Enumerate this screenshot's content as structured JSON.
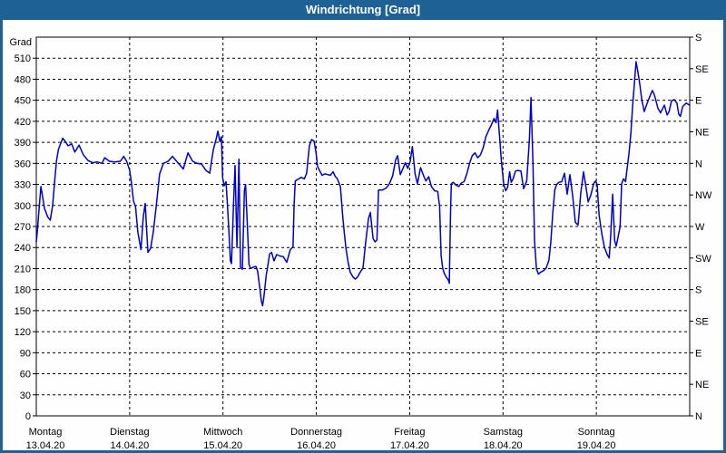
{
  "window": {
    "title": "Windrichtung [Grad]"
  },
  "colors": {
    "frame": "#1E6295",
    "title_bg": "#1E6295",
    "title_text": "#FFFFFF",
    "line": "#0000C8",
    "grid": "#000000",
    "axis": "#000000",
    "text": "#000000",
    "background": "#FDFEFD"
  },
  "chart_data": {
    "type": "line",
    "title": "Windrichtung [Grad]",
    "ylabel_left": "Grad",
    "y_min": 0,
    "y_max": 540,
    "y_grid_step": 30,
    "y_left_labels": [
      510,
      480,
      450,
      420,
      390,
      360,
      330,
      300,
      270,
      240,
      210,
      180,
      150,
      120,
      90,
      60,
      30,
      0
    ],
    "y_right_labels": [
      {
        "deg": 540,
        "label": "S"
      },
      {
        "deg": 495,
        "label": "SE"
      },
      {
        "deg": 450,
        "label": "E"
      },
      {
        "deg": 405,
        "label": "NE"
      },
      {
        "deg": 360,
        "label": "N"
      },
      {
        "deg": 315,
        "label": "NW"
      },
      {
        "deg": 270,
        "label": "W"
      },
      {
        "deg": 225,
        "label": "SW"
      },
      {
        "deg": 180,
        "label": "S"
      },
      {
        "deg": 135,
        "label": "SE"
      },
      {
        "deg": 90,
        "label": "E"
      },
      {
        "deg": 45,
        "label": "NE"
      },
      {
        "deg": 0,
        "label": "N"
      }
    ],
    "x_min_hours": 0,
    "x_max_hours": 168,
    "x_day_step_hours": 24,
    "grid": "dashed",
    "legend_position": "none",
    "days": [
      {
        "name": "Montag",
        "date": "13.04.20"
      },
      {
        "name": "Dienstag",
        "date": "14.04.20"
      },
      {
        "name": "Mittwoch",
        "date": "15.04.20"
      },
      {
        "name": "Donnerstag",
        "date": "16.04.20"
      },
      {
        "name": "Freitag",
        "date": "17.04.20"
      },
      {
        "name": "Samstag",
        "date": "18.04.20"
      },
      {
        "name": "Sonntag",
        "date": "19.04.20"
      }
    ],
    "series": [
      {
        "name": "Windrichtung",
        "points": [
          [
            0,
            248
          ],
          [
            0.3,
            265
          ],
          [
            0.6,
            288
          ],
          [
            1.2,
            327
          ],
          [
            2.1,
            296
          ],
          [
            2.9,
            284
          ],
          [
            3.6,
            279
          ],
          [
            4.2,
            300
          ],
          [
            4.8,
            340
          ],
          [
            5.2,
            364
          ],
          [
            5.7,
            380
          ],
          [
            6.8,
            396
          ],
          [
            7.5,
            391
          ],
          [
            8.2,
            385
          ],
          [
            9.1,
            388
          ],
          [
            9.9,
            376
          ],
          [
            11,
            386
          ],
          [
            12.1,
            372
          ],
          [
            13.3,
            364
          ],
          [
            14.5,
            361
          ],
          [
            15.7,
            362
          ],
          [
            16.9,
            360
          ],
          [
            17.6,
            368
          ],
          [
            18.8,
            363
          ],
          [
            20.1,
            362
          ],
          [
            21.6,
            363
          ],
          [
            22.5,
            370
          ],
          [
            23.3,
            362
          ],
          [
            24,
            350
          ],
          [
            24.5,
            331
          ],
          [
            25,
            306
          ],
          [
            25.5,
            299
          ],
          [
            26.1,
            262
          ],
          [
            26.9,
            237
          ],
          [
            27.5,
            284
          ],
          [
            28,
            303
          ],
          [
            28.7,
            233
          ],
          [
            29.4,
            239
          ],
          [
            30.1,
            263
          ],
          [
            30.9,
            302
          ],
          [
            31.7,
            345
          ],
          [
            32.7,
            360
          ],
          [
            33.9,
            363
          ],
          [
            35,
            370
          ],
          [
            36.4,
            361
          ],
          [
            37.8,
            352
          ],
          [
            39,
            375
          ],
          [
            40.2,
            363
          ],
          [
            41.3,
            360
          ],
          [
            42.5,
            359
          ],
          [
            43.6,
            350
          ],
          [
            44.6,
            346
          ],
          [
            45.5,
            379
          ],
          [
            46.3,
            396
          ],
          [
            46.7,
            406
          ],
          [
            47.2,
            391
          ],
          [
            47.6,
            398
          ],
          [
            47.9,
            340
          ],
          [
            48.3,
            328
          ],
          [
            48.8,
            334
          ],
          [
            49.5,
            267
          ],
          [
            49.9,
            221
          ],
          [
            50.2,
            217
          ],
          [
            50.7,
            301
          ],
          [
            51.1,
            357
          ],
          [
            51.6,
            240
          ],
          [
            52.1,
            366
          ],
          [
            52.5,
            212
          ],
          [
            53,
            209
          ],
          [
            53.5,
            321
          ],
          [
            53.8,
            330
          ],
          [
            54.2,
            280
          ],
          [
            54.7,
            216
          ],
          [
            55.1,
            210
          ],
          [
            55.8,
            212
          ],
          [
            56.5,
            213
          ],
          [
            56.9,
            206
          ],
          [
            57.4,
            185
          ],
          [
            57.9,
            163
          ],
          [
            58.2,
            157
          ],
          [
            58.6,
            173
          ],
          [
            59.1,
            200
          ],
          [
            59.5,
            213
          ],
          [
            60,
            231
          ],
          [
            60.5,
            233
          ],
          [
            61.1,
            221
          ],
          [
            61.8,
            230
          ],
          [
            62.6,
            228
          ],
          [
            63.5,
            227
          ],
          [
            64.4,
            219
          ],
          [
            65.3,
            237
          ],
          [
            66,
            241
          ],
          [
            66.3,
            302
          ],
          [
            66.6,
            335
          ],
          [
            67.2,
            337
          ],
          [
            68.1,
            340
          ],
          [
            68.9,
            338
          ],
          [
            69.5,
            346
          ],
          [
            70.2,
            385
          ],
          [
            70.8,
            394
          ],
          [
            71.4,
            392
          ],
          [
            71.9,
            377
          ],
          [
            72.3,
            356
          ],
          [
            72.9,
            349
          ],
          [
            73.5,
            343
          ],
          [
            74.2,
            345
          ],
          [
            74.9,
            344
          ],
          [
            75.6,
            343
          ],
          [
            76.3,
            348
          ],
          [
            76.9,
            341
          ],
          [
            77.3,
            339
          ],
          [
            77.7,
            334
          ],
          [
            78.2,
            327
          ],
          [
            78.7,
            290
          ],
          [
            79.1,
            266
          ],
          [
            79.6,
            240
          ],
          [
            80.1,
            221
          ],
          [
            80.7,
            205
          ],
          [
            81.4,
            198
          ],
          [
            82,
            195
          ],
          [
            82.6,
            198
          ],
          [
            83.3,
            205
          ],
          [
            84,
            211
          ],
          [
            84.7,
            248
          ],
          [
            85.4,
            281
          ],
          [
            85.9,
            290
          ],
          [
            86.6,
            253
          ],
          [
            87.1,
            248
          ],
          [
            87.6,
            251
          ],
          [
            88,
            322
          ],
          [
            89,
            322
          ],
          [
            90,
            325
          ],
          [
            90.8,
            331
          ],
          [
            91.6,
            342
          ],
          [
            92.4,
            365
          ],
          [
            92.9,
            371
          ],
          [
            93.6,
            344
          ],
          [
            94.3,
            353
          ],
          [
            94.9,
            361
          ],
          [
            95.5,
            353
          ],
          [
            96.1,
            362
          ],
          [
            96.7,
            384
          ],
          [
            97.4,
            345
          ],
          [
            98,
            331
          ],
          [
            98.8,
            354
          ],
          [
            99.6,
            342
          ],
          [
            100.2,
            335
          ],
          [
            100.9,
            341
          ],
          [
            101.6,
            327
          ],
          [
            102.4,
            321
          ],
          [
            103.2,
            320
          ],
          [
            103.7,
            299
          ],
          [
            104.1,
            228
          ],
          [
            104.5,
            210
          ],
          [
            104.9,
            203
          ],
          [
            105.5,
            197
          ],
          [
            105.9,
            194
          ],
          [
            106.2,
            189
          ],
          [
            106.5,
            285
          ],
          [
            106.7,
            331
          ],
          [
            107.2,
            333
          ],
          [
            107.9,
            329
          ],
          [
            108.6,
            327
          ],
          [
            109.3,
            332
          ],
          [
            110,
            334
          ],
          [
            110.7,
            345
          ],
          [
            111.4,
            360
          ],
          [
            112.1,
            371
          ],
          [
            112.8,
            375
          ],
          [
            113.5,
            368
          ],
          [
            114.2,
            372
          ],
          [
            114.9,
            382
          ],
          [
            115.6,
            398
          ],
          [
            116.3,
            407
          ],
          [
            117,
            415
          ],
          [
            117.7,
            424
          ],
          [
            118.2,
            418
          ],
          [
            118.6,
            436
          ],
          [
            119.1,
            400
          ],
          [
            119.6,
            362
          ],
          [
            120.2,
            330
          ],
          [
            120.7,
            321
          ],
          [
            121.2,
            326
          ],
          [
            121.7,
            348
          ],
          [
            122.1,
            333
          ],
          [
            122.6,
            338
          ],
          [
            123.2,
            349
          ],
          [
            123.9,
            350
          ],
          [
            124.6,
            349
          ],
          [
            125.3,
            324
          ],
          [
            126.1,
            335
          ],
          [
            126.8,
            395
          ],
          [
            127.2,
            454
          ],
          [
            127.7,
            360
          ],
          [
            128.1,
            250
          ],
          [
            128.6,
            210
          ],
          [
            129.1,
            202
          ],
          [
            129.7,
            205
          ],
          [
            130.4,
            207
          ],
          [
            131.1,
            211
          ],
          [
            131.8,
            222
          ],
          [
            132.3,
            248
          ],
          [
            132.8,
            289
          ],
          [
            133.3,
            322
          ],
          [
            133.8,
            330
          ],
          [
            134.4,
            333
          ],
          [
            135.1,
            334
          ],
          [
            135.8,
            346
          ],
          [
            136.5,
            316
          ],
          [
            137.2,
            344
          ],
          [
            137.9,
            314
          ],
          [
            138.6,
            276
          ],
          [
            139.3,
            272
          ],
          [
            140,
            318
          ],
          [
            140.7,
            348
          ],
          [
            141.4,
            324
          ],
          [
            141.9,
            305
          ],
          [
            142.6,
            315
          ],
          [
            143.3,
            331
          ],
          [
            143.8,
            335
          ],
          [
            144.2,
            330
          ],
          [
            144.7,
            287
          ],
          [
            145.4,
            260
          ],
          [
            146.1,
            240
          ],
          [
            146.8,
            230
          ],
          [
            147.3,
            225
          ],
          [
            147.7,
            258
          ],
          [
            148.2,
            316
          ],
          [
            148.7,
            250
          ],
          [
            149.1,
            242
          ],
          [
            149.6,
            255
          ],
          [
            150.1,
            270
          ],
          [
            150.5,
            331
          ],
          [
            151,
            338
          ],
          [
            151.5,
            334
          ],
          [
            151.9,
            352
          ],
          [
            152.4,
            374
          ],
          [
            152.9,
            405
          ],
          [
            153.3,
            440
          ],
          [
            153.8,
            475
          ],
          [
            154.2,
            505
          ],
          [
            154.7,
            490
          ],
          [
            155.2,
            472
          ],
          [
            155.7,
            450
          ],
          [
            156.3,
            434
          ],
          [
            157,
            445
          ],
          [
            157.7,
            455
          ],
          [
            158.4,
            464
          ],
          [
            158.9,
            458
          ],
          [
            159.4,
            448
          ],
          [
            159.8,
            439
          ],
          [
            160.5,
            432
          ],
          [
            161.5,
            443
          ],
          [
            162.2,
            429
          ],
          [
            162.7,
            434
          ],
          [
            163.3,
            449
          ],
          [
            164,
            451
          ],
          [
            164.7,
            446
          ],
          [
            165.2,
            430
          ],
          [
            165.6,
            427
          ],
          [
            166.2,
            441
          ],
          [
            167.1,
            446
          ],
          [
            168,
            443
          ]
        ]
      }
    ]
  }
}
